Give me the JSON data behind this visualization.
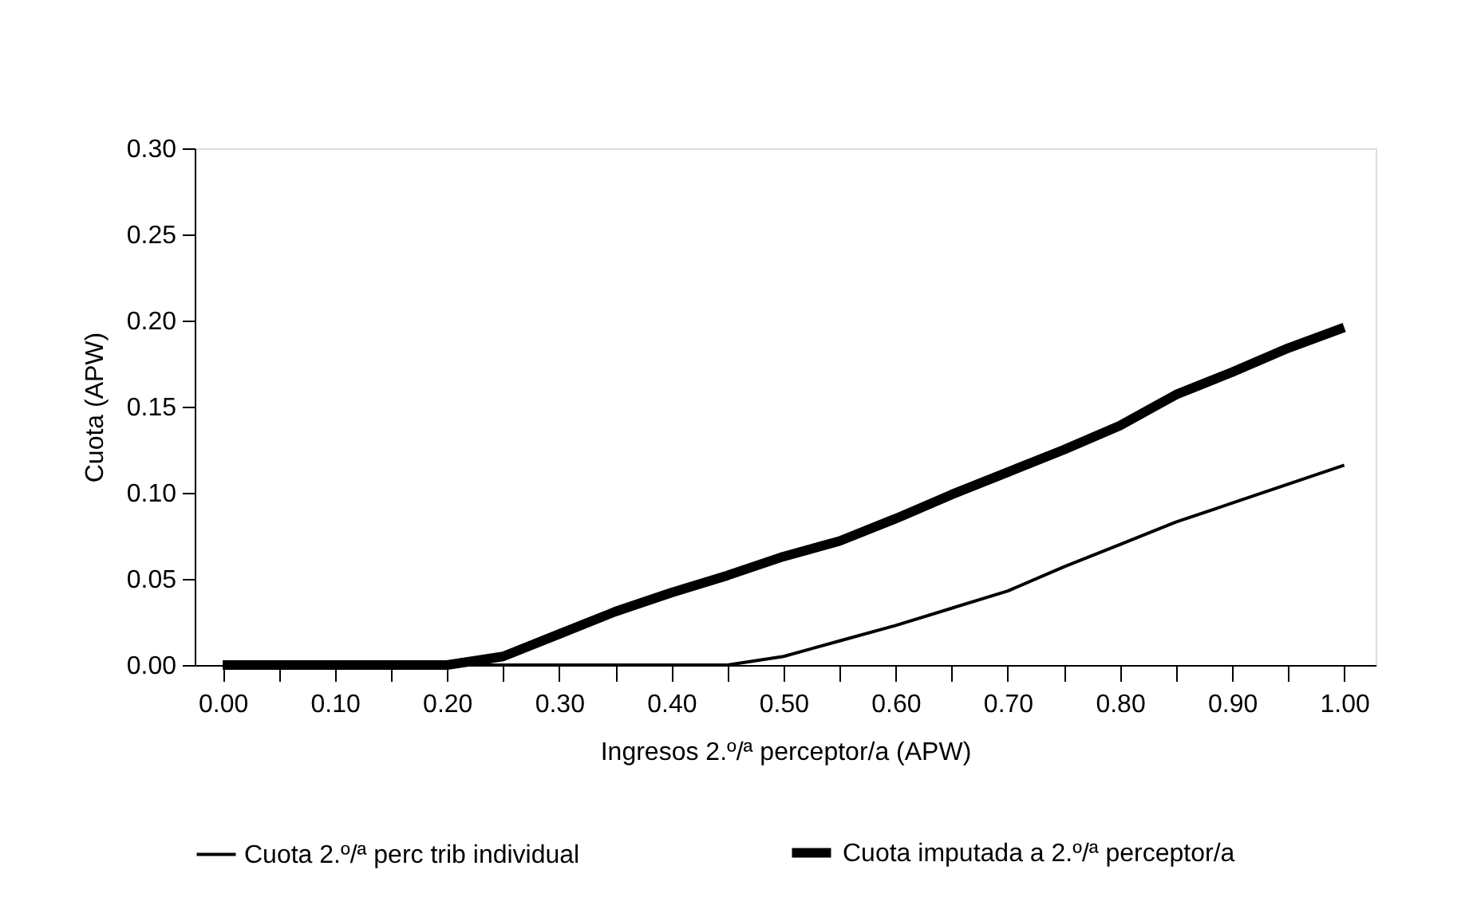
{
  "chart_data": {
    "type": "line",
    "xlabel": "Ingresos 2.º/ª perceptor/a (APW)",
    "ylabel": "Cuota (APW)",
    "x": [
      0.0,
      0.05,
      0.1,
      0.15,
      0.2,
      0.25,
      0.3,
      0.35,
      0.4,
      0.45,
      0.5,
      0.55,
      0.6,
      0.65,
      0.7,
      0.75,
      0.8,
      0.85,
      0.9,
      0.95,
      1.0
    ],
    "series": [
      {
        "name": "Cuota 2.º/ª perc trib individual",
        "color": "#000000",
        "values": [
          0,
          0,
          0,
          0,
          0,
          0,
          0,
          0,
          0,
          0,
          0.005,
          0.014,
          0.023,
          0.033,
          0.043,
          0.057,
          0.07,
          0.083,
          0.094,
          0.105,
          0.116
        ]
      },
      {
        "name": "Cuota imputada a 2.º/ª perceptor/a",
        "color": "#000000",
        "values": [
          0,
          0,
          0,
          0,
          0,
          0.005,
          0.018,
          0.031,
          0.042,
          0.052,
          0.063,
          0.072,
          0.085,
          0.099,
          0.112,
          0.125,
          0.139,
          0.157,
          0.17,
          0.184,
          0.196
        ]
      }
    ],
    "xlim": [
      -0.025,
      1.028
    ],
    "xticks": [
      {
        "value": 0,
        "label": "0.00"
      },
      {
        "value": 0.05,
        "label": null
      },
      {
        "value": 0.1,
        "label": "0.10"
      },
      {
        "value": 0.15,
        "label": null
      },
      {
        "value": 0.2,
        "label": "0.20"
      },
      {
        "value": 0.25,
        "label": null
      },
      {
        "value": 0.3,
        "label": "0.30"
      },
      {
        "value": 0.35,
        "label": null
      },
      {
        "value": 0.4,
        "label": "0.40"
      },
      {
        "value": 0.45,
        "label": null
      },
      {
        "value": 0.5,
        "label": "0.50"
      },
      {
        "value": 0.55,
        "label": null
      },
      {
        "value": 0.6,
        "label": "0.60"
      },
      {
        "value": 0.65,
        "label": null
      },
      {
        "value": 0.7,
        "label": "0.70"
      },
      {
        "value": 0.75,
        "label": null
      },
      {
        "value": 0.8,
        "label": "0.80"
      },
      {
        "value": 0.85,
        "label": null
      },
      {
        "value": 0.9,
        "label": "0.90"
      },
      {
        "value": 0.95,
        "label": null
      },
      {
        "value": 1.0,
        "label": "1.00"
      }
    ],
    "ylim": [
      0,
      0.3
    ],
    "yticks": [
      {
        "value": 0,
        "label": "0.00"
      },
      {
        "value": 0.05,
        "label": "0.05"
      },
      {
        "value": 0.1,
        "label": "0.10"
      },
      {
        "value": 0.15,
        "label": "0.15"
      },
      {
        "value": 0.2,
        "label": "0.20"
      },
      {
        "value": 0.25,
        "label": "0.25"
      },
      {
        "value": 0.3,
        "label": "0.30"
      }
    ],
    "grid": false,
    "legend": "bottom",
    "marker": "none",
    "line_style": "solid"
  }
}
